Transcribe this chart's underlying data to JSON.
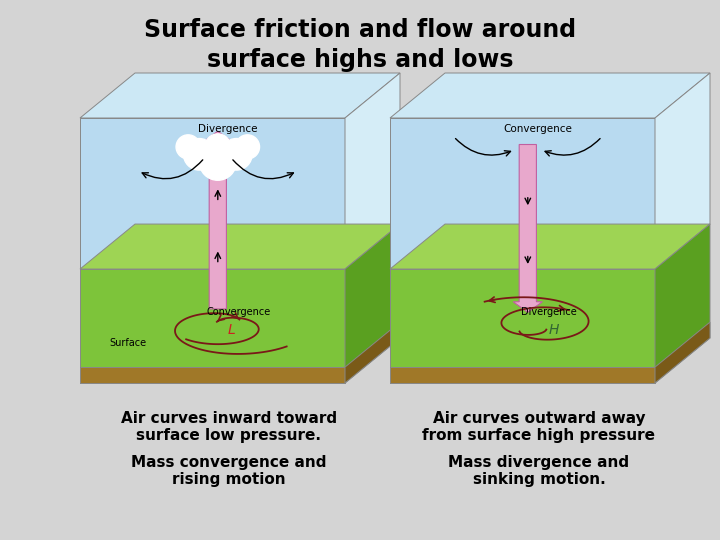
{
  "background_color": "#d4d4d4",
  "title_line1": "Surface friction and flow around",
  "title_line2": "surface highs and lows",
  "title_fontsize": 17,
  "title_fontweight": "bold",
  "left_caption1": "Air curves inward toward\nsurface low pressure.",
  "left_caption2": "Mass convergence and\nrising motion",
  "right_caption1": "Air curves outward away\nfrom surface high pressure",
  "right_caption2": "Mass divergence and\nsinking motion.",
  "caption_fontsize": 11,
  "caption_fontweight": "bold"
}
